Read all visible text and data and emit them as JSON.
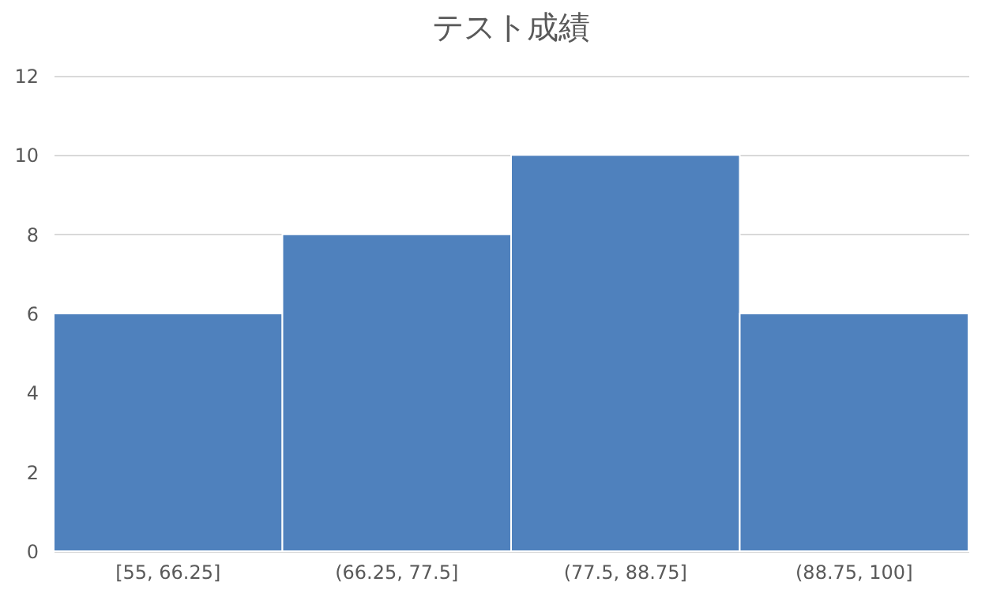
{
  "chart_data": {
    "type": "bar",
    "title": "テスト成績",
    "categories": [
      "[55, 66.25]",
      "(66.25, 77.5]",
      "(77.5, 88.75]",
      "(88.75, 100]"
    ],
    "values": [
      6,
      8,
      10,
      6
    ],
    "color": "#4f81bd",
    "ylim": [
      0,
      12
    ],
    "yticks": [
      0,
      2,
      4,
      6,
      8,
      10,
      12
    ],
    "grid": "y"
  }
}
